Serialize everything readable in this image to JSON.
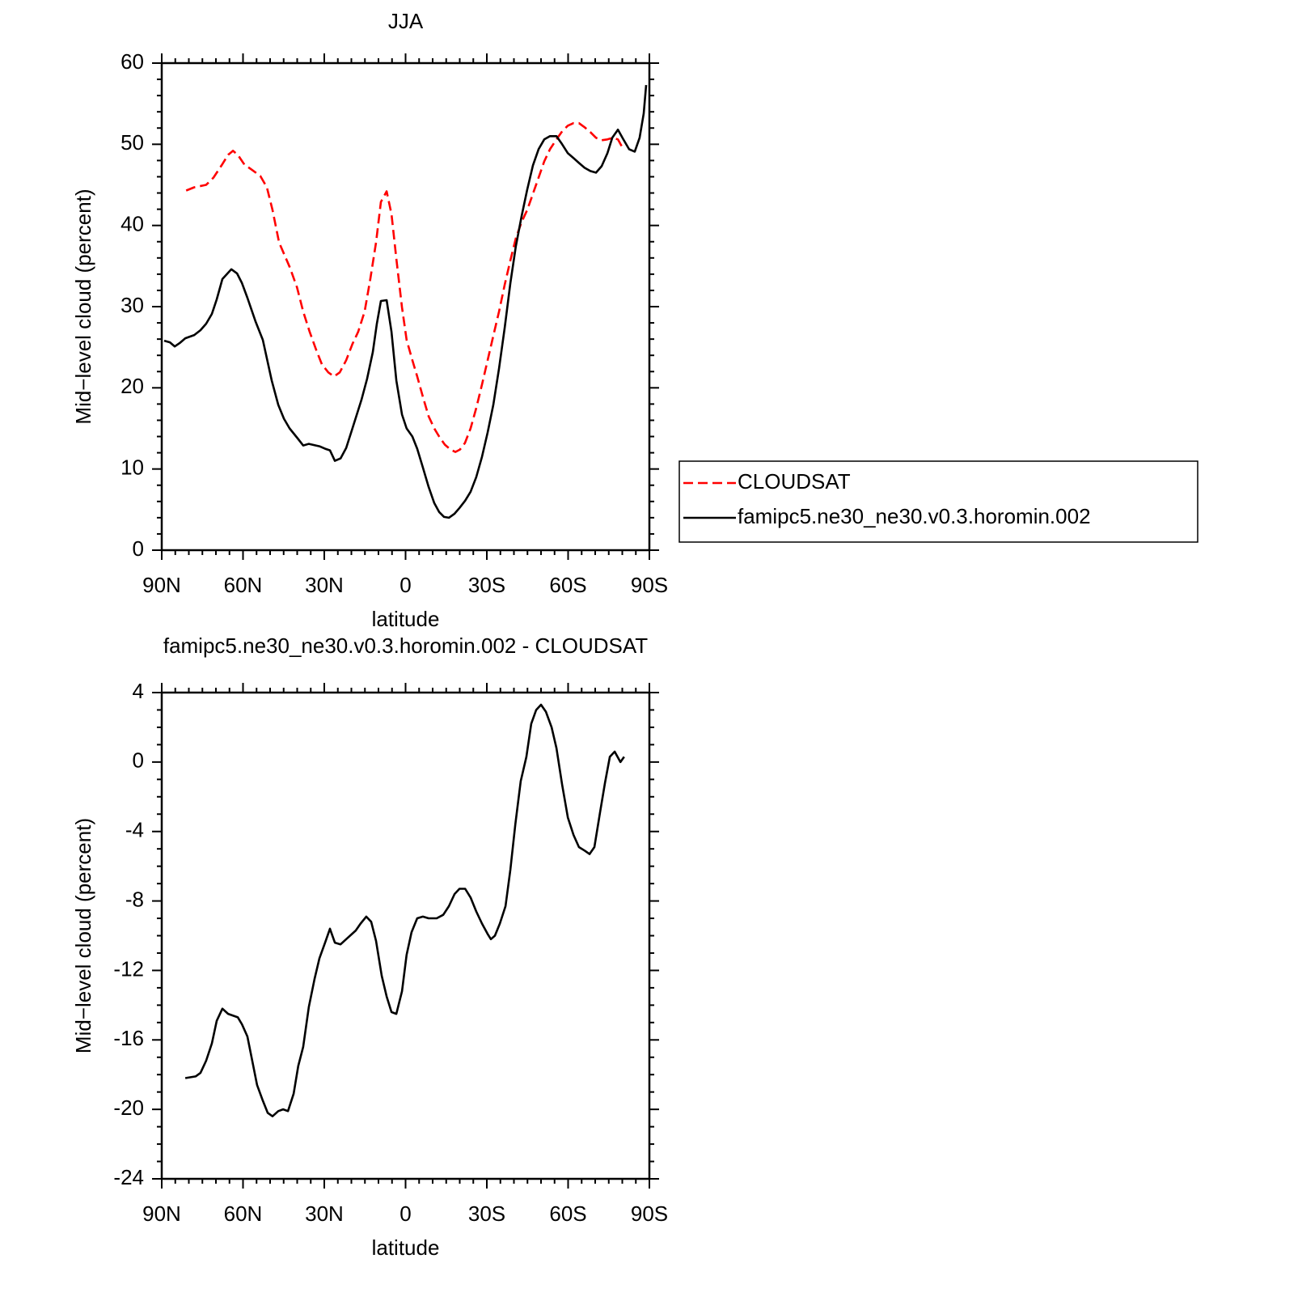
{
  "chart_data": [
    {
      "type": "line",
      "title": "JJA",
      "xlabel": "latitude",
      "ylabel": "Mid−level cloud (percent)",
      "xlim": [
        90,
        -90
      ],
      "xticks": [
        {
          "value": 90,
          "label": "90N"
        },
        {
          "value": 60,
          "label": "60N"
        },
        {
          "value": 30,
          "label": "30N"
        },
        0,
        {
          "value": -30,
          "label": "30S"
        },
        {
          "value": -60,
          "label": "60S"
        },
        {
          "value": -90,
          "label": "90S"
        }
      ],
      "ylim": [
        0,
        60
      ],
      "yticks": [
        0,
        10,
        20,
        30,
        40,
        50,
        60
      ],
      "legend": "right",
      "series": [
        {
          "name": "CLOUDSAT",
          "color": "#ff0000",
          "dash": "dashed",
          "x": [
            81,
            78,
            73.6,
            70.9,
            67.9,
            65.5,
            63.7,
            61.9,
            59.5,
            56.9,
            53.6,
            51.2,
            49.1,
            46.7,
            42.8,
            40.1,
            37.8,
            35.4,
            33,
            30.9,
            28.5,
            26.4,
            24.3,
            21.9,
            19.6,
            17.5,
            15.1,
            13,
            10.9,
            9.1,
            7,
            5.2,
            3.4,
            1.3,
            -0.4,
            -2.5,
            -4.3,
            -6.4,
            -8.5,
            -10.6,
            -12.4,
            -14.5,
            -16.6,
            -18.4,
            -20.1,
            -21.9,
            -24,
            -26.1,
            -28.2,
            -30.3,
            -32.4,
            -34.5,
            -36.6,
            -38.7,
            -40.7,
            -42.8,
            -44.9,
            -47,
            -49.1,
            -51.2,
            -53.3,
            -55.7,
            -57.8,
            -59.9,
            -62,
            -64,
            -66.1,
            -68.2,
            -70.3,
            -72.4,
            -74.5,
            -76.6,
            -78.4,
            -80.4
          ],
          "values": [
            44.3,
            44.7,
            45.0,
            45.9,
            47.4,
            48.7,
            49.2,
            48.7,
            47.5,
            46.9,
            46.1,
            44.7,
            41.9,
            37.9,
            34.9,
            32.4,
            29.4,
            26.9,
            24.7,
            22.9,
            21.9,
            21.4,
            21.9,
            23.4,
            25.4,
            26.9,
            29.4,
            33.4,
            37.9,
            42.9,
            44.2,
            41.4,
            35.9,
            29.9,
            25.9,
            23.4,
            21.4,
            18.9,
            16.5,
            15.0,
            14.0,
            13.0,
            12.4,
            12.1,
            12.4,
            13.2,
            15.0,
            17.5,
            20.4,
            23.4,
            26.4,
            29.4,
            32.7,
            35.7,
            38.4,
            40.4,
            41.9,
            43.9,
            45.9,
            47.9,
            49.4,
            50.6,
            51.6,
            52.3,
            52.6,
            52.6,
            52.1,
            51.5,
            50.8,
            50.5,
            50.6,
            50.8,
            50.6,
            49.4
          ]
        },
        {
          "name": "famipc5.ne30_ne30.v0.3.horomin.002",
          "color": "#000000",
          "dash": "solid",
          "x": [
            89.1,
            87,
            85.2,
            83.4,
            81.3,
            78,
            75.7,
            73.6,
            71.5,
            69.7,
            67.6,
            64.3,
            62.2,
            60.4,
            58.4,
            55.4,
            52.7,
            49.4,
            47,
            44.9,
            42.8,
            39.9,
            37.8,
            35.7,
            31.8,
            29.7,
            27.9,
            26.1,
            24,
            21.9,
            19.6,
            16.3,
            14.2,
            12.1,
            10.6,
            9.1,
            7,
            5.2,
            3.4,
            1.3,
            -0.4,
            -2.5,
            -4.3,
            -6.4,
            -8.5,
            -10.6,
            -12.4,
            -14.2,
            -16,
            -18.1,
            -19.9,
            -22,
            -24,
            -26.1,
            -28.2,
            -30.3,
            -32.4,
            -34.5,
            -36.6,
            -38.7,
            -40.7,
            -42.8,
            -44.9,
            -47,
            -49.1,
            -51.2,
            -53.3,
            -55.7,
            -57.8,
            -59.9,
            -62,
            -64,
            -66.1,
            -68.2,
            -70.3,
            -72.4,
            -74.5,
            -76.3,
            -78.4,
            -80.4,
            -82.5,
            -84.6,
            -86.4,
            -87.9,
            -88.8
          ],
          "values": [
            25.8,
            25.6,
            25.1,
            25.5,
            26.1,
            26.5,
            27.1,
            27.9,
            29.1,
            30.9,
            33.4,
            34.6,
            34.1,
            32.9,
            31.1,
            28.2,
            25.9,
            20.9,
            17.9,
            16.2,
            15.0,
            13.8,
            12.9,
            13.1,
            12.8,
            12.5,
            12.3,
            11.0,
            11.3,
            12.6,
            15.0,
            18.5,
            21.1,
            24.4,
            27.9,
            30.7,
            30.8,
            26.9,
            20.9,
            16.7,
            15.0,
            14.0,
            12.5,
            10.2,
            7.8,
            5.8,
            4.7,
            4.1,
            4.0,
            4.5,
            5.2,
            6.1,
            7.2,
            9.0,
            11.5,
            14.5,
            17.9,
            22.4,
            27.4,
            32.9,
            37.4,
            41.1,
            44.4,
            47.4,
            49.4,
            50.6,
            51.0,
            51.0,
            50.0,
            48.9,
            48.3,
            47.7,
            47.1,
            46.7,
            46.5,
            47.3,
            48.9,
            50.8,
            51.8,
            50.6,
            49.4,
            49.1,
            50.8,
            53.8,
            57.3
          ]
        }
      ]
    },
    {
      "type": "line",
      "title": "famipc5.ne30_ne30.v0.3.horomin.002 - CLOUDSAT",
      "xlabel": "latitude",
      "ylabel": "Mid−level cloud (percent)",
      "xlim": [
        90,
        -90
      ],
      "xticks": [
        {
          "value": 90,
          "label": "90N"
        },
        {
          "value": 60,
          "label": "60N"
        },
        {
          "value": 30,
          "label": "30N"
        },
        0,
        {
          "value": -30,
          "label": "30S"
        },
        {
          "value": -60,
          "label": "60S"
        },
        {
          "value": -90,
          "label": "90S"
        }
      ],
      "ylim": [
        -24,
        4
      ],
      "yticks": [
        -24,
        -20,
        -16,
        -12,
        -8,
        -4,
        0,
        4
      ],
      "series": [
        {
          "color": "#000000",
          "dash": "solid",
          "x": [
            81.3,
            77.5,
            75.7,
            73.6,
            71.5,
            69.7,
            67.6,
            65.5,
            61.9,
            60.4,
            58.4,
            56.6,
            54.8,
            52.7,
            50.9,
            49.1,
            47,
            45.2,
            43.4,
            41.3,
            39.6,
            37.8,
            35.7,
            33.6,
            31.8,
            29.7,
            27.9,
            26.1,
            24,
            21.9,
            18.4,
            16.6,
            14.5,
            12.7,
            10.9,
            8.8,
            7,
            5.2,
            3.4,
            1.3,
            -0.4,
            -2.2,
            -4.3,
            -6.4,
            -8.5,
            -11.5,
            -13.9,
            -16,
            -18.1,
            -19.9,
            -22,
            -24,
            -26.1,
            -28.2,
            -30.3,
            -31.5,
            -33,
            -34.8,
            -36.9,
            -38.7,
            -40.5,
            -42.5,
            -44.6,
            -46.4,
            -48.2,
            -50,
            -51.8,
            -53.9,
            -55.7,
            -57.8,
            -59.9,
            -62,
            -64,
            -66.1,
            -67.9,
            -69.7,
            -71.8,
            -73.6,
            -75.4,
            -77.2,
            -79.3,
            -80.7
          ],
          "values": [
            -18.2,
            -18.1,
            -17.9,
            -17.2,
            -16.2,
            -14.9,
            -14.2,
            -14.5,
            -14.7,
            -15.1,
            -15.8,
            -17.2,
            -18.6,
            -19.5,
            -20.2,
            -20.4,
            -20.1,
            -20.0,
            -20.1,
            -19.1,
            -17.5,
            -16.4,
            -14.1,
            -12.5,
            -11.3,
            -10.4,
            -9.6,
            -10.4,
            -10.5,
            -10.2,
            -9.7,
            -9.3,
            -8.9,
            -9.2,
            -10.3,
            -12.3,
            -13.5,
            -14.4,
            -14.5,
            -13.2,
            -11.1,
            -9.8,
            -9.0,
            -8.9,
            -9.0,
            -9.0,
            -8.8,
            -8.3,
            -7.6,
            -7.3,
            -7.3,
            -7.8,
            -8.6,
            -9.3,
            -9.9,
            -10.2,
            -10.0,
            -9.3,
            -8.3,
            -6.2,
            -3.6,
            -1.1,
            0.3,
            2.2,
            3.0,
            3.3,
            2.9,
            2.0,
            0.8,
            -1.3,
            -3.2,
            -4.2,
            -4.9,
            -5.1,
            -5.3,
            -4.9,
            -2.9,
            -1.2,
            0.3,
            0.6,
            0,
            0.3
          ]
        }
      ]
    }
  ]
}
